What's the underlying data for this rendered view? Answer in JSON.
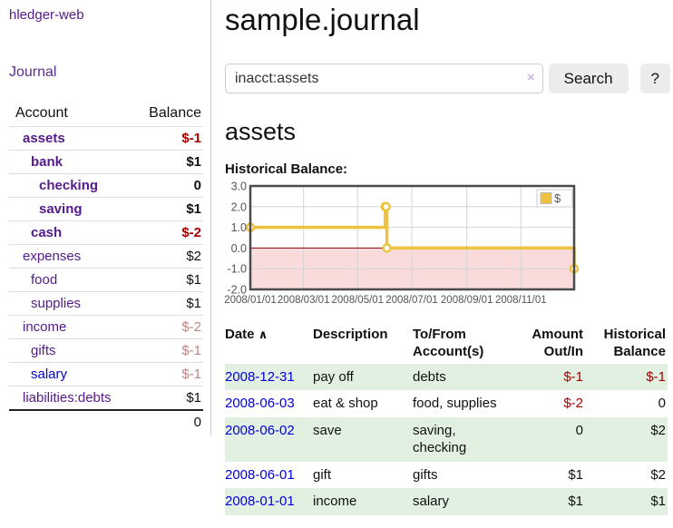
{
  "sidebar": {
    "brand": "hledger-web",
    "journal_link": "Journal",
    "accounts": {
      "headers": {
        "account": "Account",
        "balance": "Balance"
      },
      "rows": [
        {
          "name": "assets",
          "balance": "$-1",
          "level": 1,
          "bold": true,
          "balance_tone": "neg-strong",
          "link": "purple"
        },
        {
          "name": "bank",
          "balance": "$1",
          "level": 2,
          "bold": true,
          "balance_tone": "",
          "link": "purple"
        },
        {
          "name": "checking",
          "balance": "0",
          "level": 3,
          "bold": true,
          "balance_tone": "",
          "link": "purple"
        },
        {
          "name": "saving",
          "balance": "$1",
          "level": 3,
          "bold": true,
          "balance_tone": "",
          "link": "purple"
        },
        {
          "name": "cash",
          "balance": "$-2",
          "level": 2,
          "bold": true,
          "balance_tone": "neg-strong",
          "link": "purple"
        },
        {
          "name": "expenses",
          "balance": "$2",
          "level": 1,
          "bold": false,
          "balance_tone": "",
          "link": "purple"
        },
        {
          "name": "food",
          "balance": "$1",
          "level": 2,
          "bold": false,
          "balance_tone": "",
          "link": "purple"
        },
        {
          "name": "supplies",
          "balance": "$1",
          "level": 2,
          "bold": false,
          "balance_tone": "",
          "link": "purple"
        },
        {
          "name": "income",
          "balance": "$-2",
          "level": 1,
          "bold": false,
          "balance_tone": "neg-soft",
          "link": "purple"
        },
        {
          "name": "gifts",
          "balance": "$-1",
          "level": 2,
          "bold": false,
          "balance_tone": "neg-soft",
          "link": "purple"
        },
        {
          "name": "salary",
          "balance": "$-1",
          "level": 2,
          "bold": false,
          "balance_tone": "neg-soft",
          "link": "blue"
        },
        {
          "name": "liabilities:debts",
          "balance": "$1",
          "level": 1,
          "bold": false,
          "balance_tone": "",
          "link": "purple"
        }
      ],
      "total": "0"
    }
  },
  "main": {
    "title": "sample.journal",
    "search": {
      "value": "inacct:assets",
      "clear_icon": "×",
      "search_label": "Search",
      "help_label": "?"
    },
    "account_heading": "assets"
  },
  "chart_data": {
    "type": "line",
    "title": "Historical Balance:",
    "step": true,
    "legend_position": "top-right",
    "grid": true,
    "xlim": [
      "2008/01/01",
      "2008/12/31"
    ],
    "ylim": [
      -2,
      3
    ],
    "x_ticks": [
      "2008/01/01",
      "2008/03/01",
      "2008/05/01",
      "2008/07/01",
      "2008/09/01",
      "2008/11/01"
    ],
    "y_ticks": [
      "3.0",
      "2.0",
      "1.0",
      "0.0",
      "-1.0",
      "-2.0"
    ],
    "series": [
      {
        "name": "$",
        "color": "#edc240",
        "points": [
          [
            "2008/01/01",
            1
          ],
          [
            "2008/06/01",
            2
          ],
          [
            "2008/06/02",
            2
          ],
          [
            "2008/06/03",
            0
          ],
          [
            "2008/12/31",
            -1
          ]
        ]
      }
    ],
    "negative_region_fill": "#fadbdb",
    "zero_line_color": "#8b0000",
    "grid_color": "#d4d4d4",
    "border_color": "#4a4a4a"
  },
  "transactions": {
    "headers": {
      "date": "Date",
      "sort_icon": "∧",
      "description": "Description",
      "accounts": "To/From Account(s)",
      "amount": "Amount Out/In",
      "balance": "Historical Balance"
    },
    "rows": [
      {
        "date": "2008-12-31",
        "description": "pay off",
        "accounts": "debts",
        "amount": "$-1",
        "amount_tone": "neg-strong",
        "balance": "$-1",
        "balance_tone": "neg-strong"
      },
      {
        "date": "2008-06-03",
        "description": "eat & shop",
        "accounts": "food, supplies",
        "amount": "$-2",
        "amount_tone": "neg-strong",
        "balance": "0",
        "balance_tone": ""
      },
      {
        "date": "2008-06-02",
        "description": "save",
        "accounts": "saving, checking",
        "amount": "0",
        "amount_tone": "",
        "balance": "$2",
        "balance_tone": ""
      },
      {
        "date": "2008-06-01",
        "description": "gift",
        "accounts": "gifts",
        "amount": "$1",
        "amount_tone": "",
        "balance": "$2",
        "balance_tone": ""
      },
      {
        "date": "2008-01-01",
        "description": "income",
        "accounts": "salary",
        "amount": "$1",
        "amount_tone": "",
        "balance": "$1",
        "balance_tone": ""
      }
    ]
  },
  "colors": {
    "accent_purple": "#551a8b",
    "link_blue": "#0000dd",
    "negative_strong": "#a40000",
    "negative_soft": "#c08383",
    "row_green": "#e2f0e2",
    "series_gold": "#edc240"
  }
}
